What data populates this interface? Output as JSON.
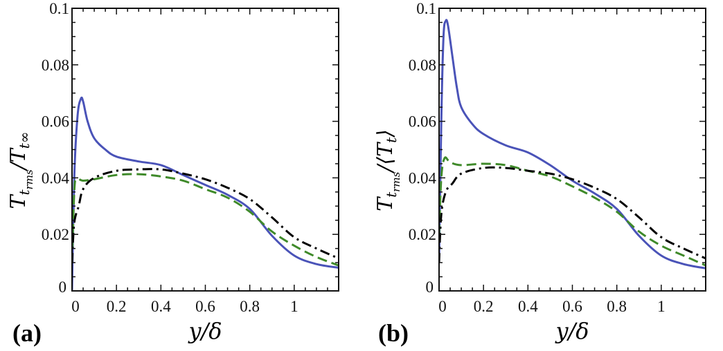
{
  "colors": {
    "blue": "#4a53b8",
    "green": "#3f8a2a",
    "black": "#000000",
    "axis": "#111111"
  },
  "chart_data": [
    {
      "type": "line",
      "panel_label": "(a)",
      "xlabel": "y/δ",
      "ylabel": {
        "num": "T",
        "num_sub": "t",
        "num_subsub": "rms",
        "sep": "/",
        "den": "T",
        "den_sub": "t∞"
      },
      "xlim": [
        0,
        1.2
      ],
      "ylim": [
        0,
        0.1
      ],
      "xticks": [
        "0",
        "0.2",
        "0.4",
        "0.6",
        "0.8",
        "1"
      ],
      "yticks": [
        "0",
        "0.02",
        "0.04",
        "0.06",
        "0.08",
        "0.1"
      ],
      "grid": false,
      "series": [
        {
          "name": "solid",
          "style": "solid",
          "color": "blue",
          "x": [
            0,
            0.01,
            0.025,
            0.04,
            0.05,
            0.07,
            0.1,
            0.15,
            0.2,
            0.3,
            0.4,
            0.5,
            0.6,
            0.7,
            0.8,
            0.9,
            1.0,
            1.1,
            1.2
          ],
          "y": [
            0,
            0.04,
            0.062,
            0.068,
            0.067,
            0.06,
            0.054,
            0.05,
            0.0475,
            0.0458,
            0.0445,
            0.041,
            0.0375,
            0.034,
            0.029,
            0.0195,
            0.0125,
            0.0095,
            0.0082
          ]
        },
        {
          "name": "dashed",
          "style": "dashed",
          "color": "green",
          "x": [
            0,
            0.01,
            0.02,
            0.05,
            0.1,
            0.2,
            0.3,
            0.4,
            0.5,
            0.6,
            0.7,
            0.8,
            0.9,
            1.0,
            1.1,
            1.2
          ],
          "y": [
            0.01,
            0.035,
            0.0395,
            0.039,
            0.0395,
            0.041,
            0.0413,
            0.0405,
            0.039,
            0.036,
            0.033,
            0.028,
            0.021,
            0.016,
            0.012,
            0.009
          ]
        },
        {
          "name": "dash-dot",
          "style": "dashdot",
          "color": "black",
          "x": [
            0,
            0.01,
            0.03,
            0.05,
            0.1,
            0.2,
            0.3,
            0.4,
            0.5,
            0.6,
            0.7,
            0.8,
            0.9,
            1.0,
            1.1,
            1.2
          ],
          "y": [
            0.01,
            0.024,
            0.03,
            0.036,
            0.04,
            0.0425,
            0.043,
            0.043,
            0.0415,
            0.0395,
            0.0365,
            0.0325,
            0.026,
            0.019,
            0.015,
            0.0115
          ]
        }
      ]
    },
    {
      "type": "line",
      "panel_label": "(b)",
      "xlabel": "y/δ",
      "ylabel": {
        "num": "T",
        "num_sub": "t",
        "num_subsub": "rms",
        "sep": "/",
        "den": "⟨T",
        "den_sub": "t",
        "den_close": "⟩"
      },
      "xlim": [
        0,
        1.2
      ],
      "ylim": [
        0,
        0.1
      ],
      "xticks": [
        "0",
        "0.2",
        "0.4",
        "0.6",
        "0.8",
        "1"
      ],
      "yticks": [
        "0",
        "0.02",
        "0.04",
        "0.06",
        "0.08",
        "0.1"
      ],
      "grid": false,
      "series": [
        {
          "name": "solid",
          "style": "solid",
          "color": "blue",
          "x": [
            0,
            0.01,
            0.02,
            0.03,
            0.04,
            0.06,
            0.08,
            0.1,
            0.15,
            0.2,
            0.3,
            0.4,
            0.5,
            0.6,
            0.7,
            0.8,
            0.9,
            1.0,
            1.1,
            1.2
          ],
          "y": [
            0.01,
            0.06,
            0.09,
            0.0955,
            0.094,
            0.083,
            0.072,
            0.065,
            0.059,
            0.0555,
            0.0515,
            0.049,
            0.0445,
            0.039,
            0.0345,
            0.029,
            0.0195,
            0.0125,
            0.0095,
            0.008
          ]
        },
        {
          "name": "dashed",
          "style": "dashed",
          "color": "green",
          "x": [
            0,
            0.01,
            0.025,
            0.05,
            0.1,
            0.2,
            0.3,
            0.4,
            0.5,
            0.6,
            0.7,
            0.8,
            0.9,
            1.0,
            1.1,
            1.2
          ],
          "y": [
            0.02,
            0.04,
            0.047,
            0.0455,
            0.0445,
            0.045,
            0.0445,
            0.0425,
            0.0405,
            0.037,
            0.033,
            0.028,
            0.021,
            0.016,
            0.0125,
            0.009
          ]
        },
        {
          "name": "dash-dot",
          "style": "dashdot",
          "color": "black",
          "x": [
            0,
            0.01,
            0.03,
            0.06,
            0.1,
            0.2,
            0.3,
            0.4,
            0.5,
            0.6,
            0.7,
            0.8,
            0.9,
            1.0,
            1.1,
            1.2
          ],
          "y": [
            0.01,
            0.027,
            0.035,
            0.038,
            0.0415,
            0.0435,
            0.0435,
            0.0425,
            0.0415,
            0.0395,
            0.0365,
            0.0325,
            0.026,
            0.019,
            0.015,
            0.0115
          ]
        }
      ]
    }
  ]
}
